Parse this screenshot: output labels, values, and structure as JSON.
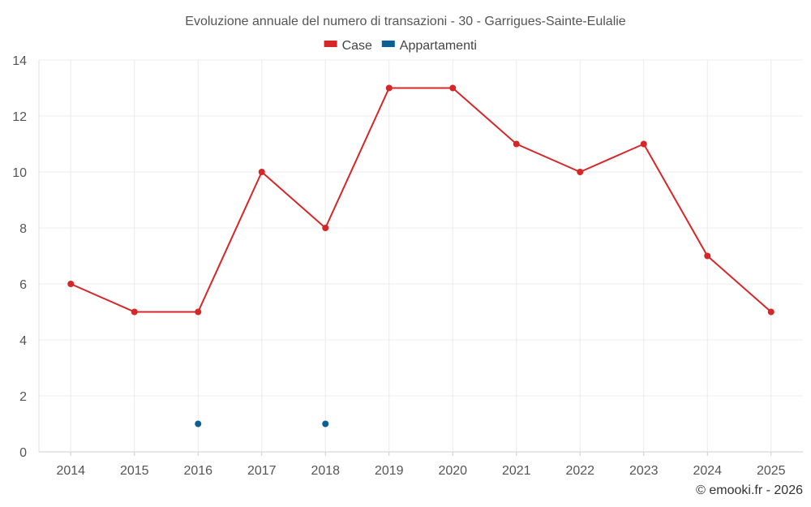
{
  "chart_data": {
    "type": "line",
    "title": "Evoluzione annuale del numero di transazioni - 30 - Garrigues-Sainte-Eulalie",
    "categories": [
      "2014",
      "2015",
      "2016",
      "2017",
      "2018",
      "2019",
      "2020",
      "2021",
      "2022",
      "2023",
      "2024",
      "2025"
    ],
    "series": [
      {
        "name": "Case",
        "color": "#d62728",
        "values": [
          6,
          5,
          5,
          10,
          8,
          13,
          13,
          11,
          10,
          11,
          7,
          5
        ]
      },
      {
        "name": "Appartamenti",
        "color": "#0b5f95",
        "values": [
          null,
          null,
          1,
          null,
          1,
          null,
          null,
          null,
          null,
          null,
          null,
          null
        ]
      }
    ],
    "ylim": [
      0,
      14
    ],
    "yticks": [
      0,
      2,
      4,
      6,
      8,
      10,
      12,
      14
    ],
    "xlabel": "",
    "ylabel": "",
    "grid": true,
    "legend": "top-center"
  },
  "credit": "© emooki.fr - 2026"
}
